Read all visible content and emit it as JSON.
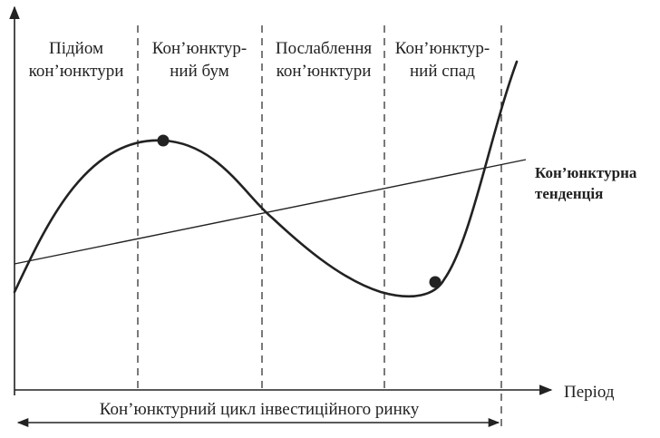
{
  "phases": [
    {
      "line1": "Підйом",
      "line2": "кон’юнктури"
    },
    {
      "line1": "Кон’юнктур-",
      "line2": "ний бум"
    },
    {
      "line1": "Послаблення",
      "line2": "кон’юнктури"
    },
    {
      "line1": "Кон’юнктур-",
      "line2": "ний спад"
    }
  ],
  "trend_label": {
    "line1": "Кон’юнктурна",
    "line2": "тенденція"
  },
  "x_axis_label": "Період",
  "cycle_label": "Кон’юнктурний цикл інвестиційного ринку",
  "colors": {
    "ink": "#222222",
    "background": "#ffffff"
  }
}
